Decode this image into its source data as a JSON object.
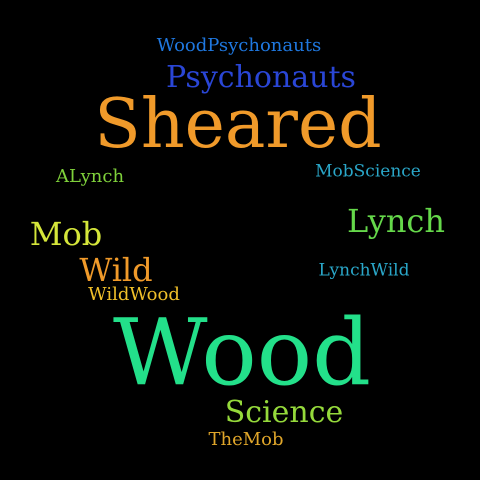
{
  "word_cloud": {
    "words": [
      {
        "key": "woodpsychonauts",
        "text": "WoodPsychonauts",
        "color": "#1f78e0"
      },
      {
        "key": "psychonauts",
        "text": "Psychonauts",
        "color": "#2a46d6"
      },
      {
        "key": "sheared",
        "text": "Sheared",
        "color": "#f09a2a"
      },
      {
        "key": "alynch",
        "text": "ALynch",
        "color": "#7fd13b"
      },
      {
        "key": "mobscience",
        "text": "MobScience",
        "color": "#2aa7c9"
      },
      {
        "key": "lynch",
        "text": "Lynch",
        "color": "#65d84a"
      },
      {
        "key": "mob",
        "text": "Mob",
        "color": "#d5e63a"
      },
      {
        "key": "lynchwild",
        "text": "LynchWild",
        "color": "#2aa7c9"
      },
      {
        "key": "wild",
        "text": "Wild",
        "color": "#f09a2a"
      },
      {
        "key": "wildwood",
        "text": "WildWood",
        "color": "#f0c02a"
      },
      {
        "key": "wood",
        "text": "Wood",
        "color": "#23e08a"
      },
      {
        "key": "science",
        "text": "Science",
        "color": "#95d93b"
      },
      {
        "key": "themob",
        "text": "TheMob",
        "color": "#e0a62a"
      }
    ],
    "background": "#000000"
  }
}
